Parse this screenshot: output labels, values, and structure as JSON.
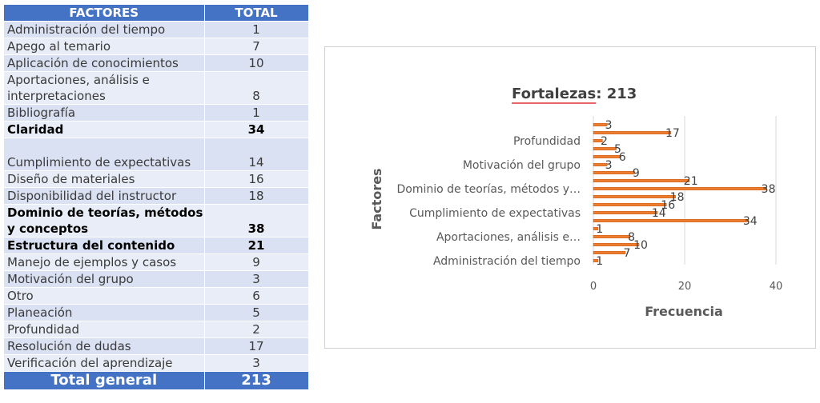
{
  "table": {
    "headers": [
      "FACTORES",
      "TOTAL"
    ],
    "rows": [
      {
        "label": "Administración del tiempo",
        "value": "1"
      },
      {
        "label": "Apego al temario",
        "value": "7"
      },
      {
        "label": "Aplicación de conocimientos",
        "value": "10"
      },
      {
        "label": "Aportaciones, análisis e interpretaciones",
        "value": "8"
      },
      {
        "label": "Bibliografía",
        "value": "1"
      },
      {
        "label": "Claridad",
        "value": "34"
      },
      {
        "label": "Cumplimiento de expectativas",
        "value": "14"
      },
      {
        "label": "Diseño de materiales",
        "value": "16"
      },
      {
        "label": "Disponibilidad del instructor",
        "value": "18"
      },
      {
        "label": "Dominio de teorías, métodos y conceptos",
        "value": "38"
      },
      {
        "label": "Estructura del contenido",
        "value": "21"
      },
      {
        "label": "Manejo de ejemplos y casos",
        "value": "9"
      },
      {
        "label": "Motivación del grupo",
        "value": "3"
      },
      {
        "label": "Otro",
        "value": "6"
      },
      {
        "label": "Planeación",
        "value": "5"
      },
      {
        "label": "Profundidad",
        "value": "2"
      },
      {
        "label": "Resolución de dudas",
        "value": "17"
      },
      {
        "label": "Verificación del aprendizaje",
        "value": "3"
      }
    ],
    "total_label": "Total general",
    "total_value": "213"
  },
  "chart_data": {
    "type": "bar",
    "orientation": "horizontal",
    "title_prefix": "Fortalezas",
    "title_suffix": ": 213",
    "xlabel": "Frecuencia",
    "ylabel": "Factores",
    "xlim": [
      0,
      40
    ],
    "xticks": [
      "0",
      "20",
      "40"
    ],
    "grid": true,
    "bar_color": "#ed7d31",
    "categories": [
      "Administración del tiempo",
      "Apego al temario",
      "Aplicación de conocimientos",
      "Aportaciones, análisis e…",
      "Bibliografía",
      "Claridad",
      "Cumplimiento de expectativas",
      "Diseño de materiales",
      "Disponibilidad del instructor",
      "Dominio de teorías, métodos y…",
      "Estructura del contenido",
      "Manejo de ejemplos y casos",
      "Motivación del grupo",
      "Otro",
      "Planeación",
      "Profundidad",
      "Resolución de dudas",
      "Verificación del aprendizaje"
    ],
    "visible_category_labels": [
      "Administración del tiempo",
      "Aportaciones, análisis e…",
      "Cumplimiento de expectativas",
      "Dominio de teorías, métodos y…",
      "Motivación del grupo",
      "Profundidad"
    ],
    "values": [
      1,
      7,
      10,
      8,
      1,
      34,
      14,
      16,
      18,
      38,
      21,
      9,
      3,
      6,
      5,
      2,
      17,
      3
    ]
  }
}
